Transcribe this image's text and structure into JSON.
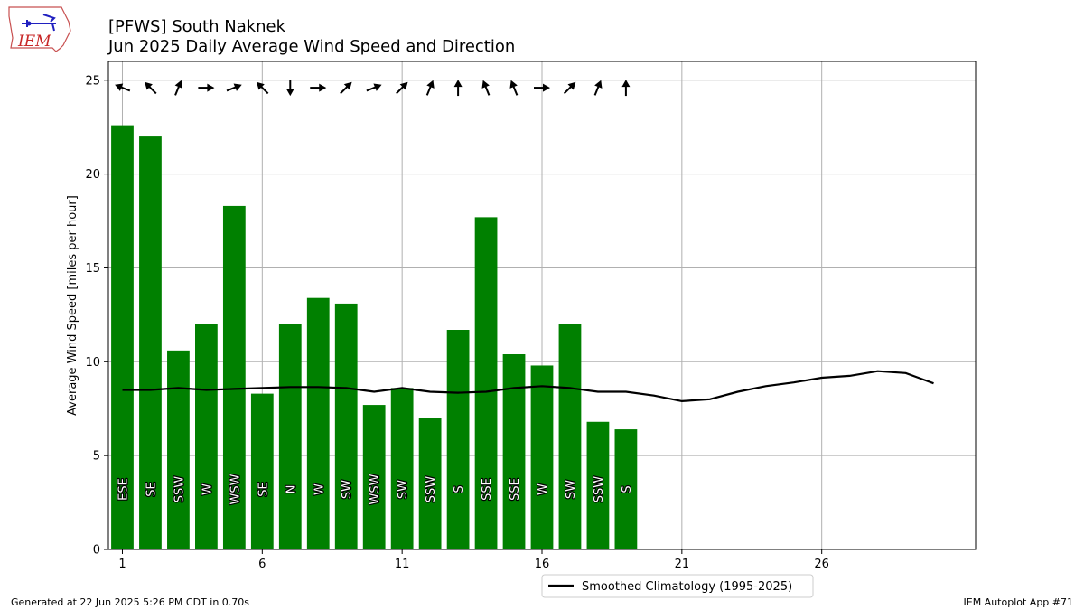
{
  "title_line1": "[PFWS] South Naknek",
  "title_line2": "Jun 2025 Daily Average Wind Speed and Direction",
  "footer_left": "Generated at 22 Jun 2025 5:26 PM CDT in 0.70s",
  "footer_right": "IEM Autoplot App #71",
  "logo_text": "IEM",
  "colors": {
    "bar": "#008000",
    "climo": "#000000",
    "grid": "#b0b0b0"
  },
  "icons": {
    "logo": "iem-iowa-logo-icon"
  },
  "chart_data": {
    "type": "bar",
    "xlabel": "",
    "ylabel": "Average Wind Speed [miles per hour]",
    "xlim": [
      0.5,
      31.5
    ],
    "ylim": [
      0,
      26
    ],
    "xticks": [
      1,
      6,
      11,
      16,
      21,
      26
    ],
    "yticks": [
      0,
      5,
      10,
      15,
      20,
      25
    ],
    "grid": true,
    "legend_position": "bottom-center",
    "days": [
      1,
      2,
      3,
      4,
      5,
      6,
      7,
      8,
      9,
      10,
      11,
      12,
      13,
      14,
      15,
      16,
      17,
      18,
      19
    ],
    "values": [
      22.6,
      22.0,
      10.6,
      12.0,
      18.3,
      8.3,
      12.0,
      13.4,
      13.1,
      7.7,
      8.6,
      7.0,
      11.7,
      17.7,
      10.4,
      9.8,
      12.0,
      6.8,
      6.4
    ],
    "directions": [
      "ESE",
      "SE",
      "SSW",
      "W",
      "WSW",
      "SE",
      "N",
      "W",
      "SW",
      "WSW",
      "SW",
      "SSW",
      "S",
      "SSE",
      "SSE",
      "W",
      "SW",
      "SSW",
      "S"
    ],
    "arrow_degrees": [
      112,
      135,
      202,
      270,
      248,
      135,
      0,
      270,
      225,
      248,
      225,
      202,
      180,
      158,
      158,
      270,
      225,
      202,
      180
    ],
    "climatology": {
      "name": "Smoothed Climatology (1995-2025)",
      "x": [
        1,
        2,
        3,
        4,
        5,
        6,
        7,
        8,
        9,
        10,
        11,
        12,
        13,
        14,
        15,
        16,
        17,
        18,
        19,
        20,
        21,
        22,
        23,
        24,
        25,
        26,
        27,
        28,
        29,
        30
      ],
      "y": [
        8.5,
        8.5,
        8.6,
        8.5,
        8.55,
        8.6,
        8.65,
        8.65,
        8.6,
        8.4,
        8.6,
        8.4,
        8.35,
        8.4,
        8.6,
        8.7,
        8.6,
        8.4,
        8.4,
        8.2,
        7.9,
        8.0,
        8.4,
        8.7,
        8.9,
        9.15,
        9.25,
        9.5,
        9.4,
        8.85
      ]
    }
  }
}
